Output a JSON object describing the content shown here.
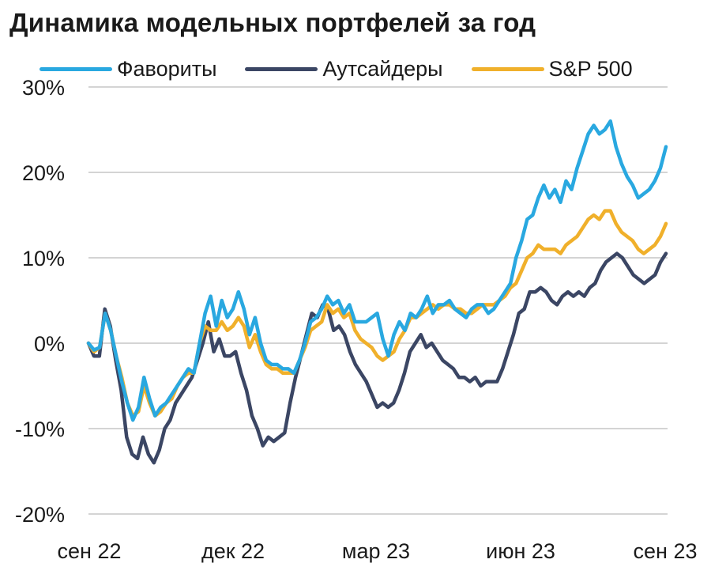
{
  "chart_data": {
    "type": "line",
    "title": "Динамика модельных портфелей за год",
    "xlabel": "",
    "ylabel": "",
    "ylim": [
      -20,
      30
    ],
    "y_ticks": [
      "30%",
      "20%",
      "10%",
      "0%",
      "-10%",
      "-20%"
    ],
    "y_tick_values": [
      30,
      20,
      10,
      0,
      -10,
      -20
    ],
    "x_ticks": [
      "сен 22",
      "дек 22",
      "мар 23",
      "июн 23",
      "сен 23"
    ],
    "grid": true,
    "legend_position": "top",
    "series": [
      {
        "name": "Фавориты",
        "color": "#29a8e0",
        "values": [
          0,
          -0.8,
          -0.5,
          3.5,
          1.5,
          -1.5,
          -4.5,
          -7,
          -9,
          -7.5,
          -4,
          -6.5,
          -8.5,
          -7.5,
          -7,
          -6,
          -5,
          -4,
          -3,
          -3.5,
          0,
          3.5,
          5.5,
          2,
          5,
          3,
          4,
          6,
          4,
          1,
          3,
          0,
          -2,
          -2.5,
          -2.5,
          -3,
          -3,
          -3.5,
          -2,
          0,
          2.5,
          3,
          4,
          5.5,
          4.5,
          5,
          3.5,
          4.5,
          2.5,
          2.5,
          2.5,
          3,
          3.5,
          0.5,
          -1.5,
          1,
          2.5,
          1.5,
          3.5,
          3,
          4,
          5.5,
          3.5,
          4.5,
          4.5,
          5,
          4,
          3.5,
          3,
          4,
          4.5,
          4.5,
          3.5,
          4,
          5,
          6,
          7,
          10,
          12,
          14.5,
          15,
          17,
          18.5,
          17,
          18,
          16.5,
          19,
          18,
          20.5,
          22.5,
          24.5,
          25.5,
          24.5,
          25,
          26,
          23,
          21,
          19.5,
          18.5,
          17,
          17.5,
          18,
          19,
          20.5,
          23
        ]
      },
      {
        "name": "Аутсайдеры",
        "color": "#3b4664",
        "values": [
          0,
          -1.5,
          -1.5,
          4,
          2,
          -2,
          -5.5,
          -11,
          -13,
          -13.5,
          -11,
          -13,
          -14,
          -12.5,
          -10,
          -9,
          -7,
          -6,
          -5,
          -4,
          -2,
          0,
          2.5,
          -1,
          0.5,
          -1.5,
          -1.5,
          -1,
          -3.5,
          -5.5,
          -8.5,
          -10,
          -12,
          -11,
          -11.5,
          -11,
          -10.5,
          -7,
          -4,
          -1.5,
          1,
          3.5,
          3,
          4.5,
          4,
          1.5,
          2,
          1,
          -1,
          -2.5,
          -3.5,
          -4.5,
          -6,
          -7.5,
          -7,
          -7.5,
          -7,
          -5.5,
          -3.5,
          -1,
          0,
          1,
          -0.5,
          0,
          -1,
          -2,
          -2.5,
          -3,
          -4,
          -4,
          -4.5,
          -4,
          -5,
          -4.5,
          -4.5,
          -4.5,
          -3,
          -1,
          1,
          3.5,
          4,
          6,
          6,
          6.5,
          6,
          5,
          4.5,
          5.5,
          6,
          5.5,
          6,
          5.5,
          6.5,
          7,
          8.5,
          9.5,
          10,
          10.5,
          10,
          9,
          8,
          7.5,
          7,
          7.5,
          8,
          9.5,
          10.5
        ]
      },
      {
        "name": "S&P 500",
        "color": "#f0b02b",
        "values": [
          0,
          -1,
          -0.5,
          3.5,
          1.5,
          -1.5,
          -4,
          -7,
          -8.5,
          -8,
          -5,
          -7,
          -8.5,
          -8,
          -7,
          -6.5,
          -5,
          -4,
          -3.5,
          -3.5,
          0,
          2,
          1.5,
          1.5,
          2.5,
          1.5,
          2,
          3,
          2,
          -0.5,
          1,
          -1,
          -2.5,
          -3,
          -3,
          -3.5,
          -3.5,
          -3.5,
          -2,
          -0.5,
          1.5,
          2,
          2.5,
          4.5,
          3.5,
          4,
          3,
          3.5,
          1.5,
          0.5,
          0,
          -0.5,
          -1.5,
          -2,
          -1.5,
          -1,
          0.5,
          1.5,
          3,
          3,
          3.5,
          4,
          4.5,
          4,
          4.5,
          4.5,
          4,
          4,
          3.5,
          3.5,
          4,
          4.5,
          4.5,
          4.5,
          5,
          5.5,
          6.5,
          7,
          8.5,
          10,
          10.5,
          11.5,
          11,
          11,
          11,
          10.5,
          11.5,
          12,
          12.5,
          13.5,
          14.5,
          15,
          14.5,
          15.5,
          15.5,
          14,
          13,
          12.5,
          12,
          11,
          10.5,
          11,
          11.5,
          12.5,
          14
        ]
      }
    ]
  }
}
